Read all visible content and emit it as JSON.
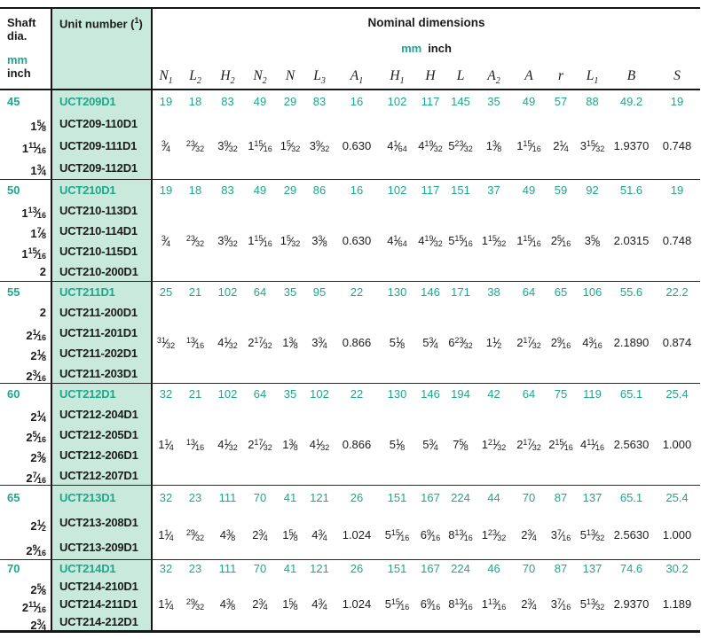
{
  "colors": {
    "accent": "#1fa78c",
    "unit_col_bg": "#c8e9dc",
    "border": "#161616"
  },
  "header": {
    "shaft_line1": "Shaft",
    "shaft_line2": "dia.",
    "shaft_mm_label": "mm",
    "shaft_inch_label": "inch",
    "unit_number_label": "Unit number",
    "unit_footnote": "1",
    "nominal_dimensions_label": "Nominal dimensions",
    "units_mm": "mm",
    "units_inch": "inch",
    "columns": [
      {
        "l": "N",
        "s": "1"
      },
      {
        "l": "L",
        "s": "2"
      },
      {
        "l": "H",
        "s": "2"
      },
      {
        "l": "N",
        "s": "2"
      },
      {
        "l": "N",
        "s": ""
      },
      {
        "l": "L",
        "s": "3"
      },
      {
        "l": "A",
        "s": "1"
      },
      {
        "l": "H",
        "s": "1"
      },
      {
        "l": "H",
        "s": ""
      },
      {
        "l": "L",
        "s": ""
      },
      {
        "l": "A",
        "s": "2"
      },
      {
        "l": "A",
        "s": ""
      },
      {
        "l": "r",
        "s": ""
      },
      {
        "l": "L",
        "s": "1"
      },
      {
        "l": "B",
        "s": ""
      },
      {
        "l": "S",
        "s": ""
      }
    ]
  },
  "blocks": [
    {
      "shaft_mm": "45",
      "shaft_inch": [
        "1 5/8",
        "1 11/16",
        "1 3/4"
      ],
      "units": [
        "UCT209D1",
        "UCT209-110D1",
        "UCT209-111D1",
        "UCT209-112D1"
      ],
      "mm": [
        "19",
        "18",
        "83",
        "49",
        "29",
        "83",
        "16",
        "102",
        "117",
        "145",
        "35",
        "49",
        "57",
        "88",
        "49.2",
        "19"
      ],
      "inch": [
        "3/4",
        "23/32",
        "3 9/32",
        "1 15/16",
        "1 5/32",
        "3 9/32",
        "0.630",
        "4 1/64",
        "4 19/32",
        "5 23/32",
        "1 3/8",
        "1 15/16",
        "2 1/4",
        "3 15/32",
        "1.9370",
        "0.748"
      ]
    },
    {
      "shaft_mm": "50",
      "shaft_inch": [
        "1 13/16",
        "1 7/8",
        "1 15/16",
        "2"
      ],
      "units": [
        "UCT210D1",
        "UCT210-113D1",
        "UCT210-114D1",
        "UCT210-115D1",
        "UCT210-200D1"
      ],
      "mm": [
        "19",
        "18",
        "83",
        "49",
        "29",
        "86",
        "16",
        "102",
        "117",
        "151",
        "37",
        "49",
        "59",
        "92",
        "51.6",
        "19"
      ],
      "inch": [
        "3/4",
        "23/32",
        "3 9/32",
        "1 15/16",
        "1 5/32",
        "3 3/8",
        "0.630",
        "4 1/64",
        "4 19/32",
        "5 15/16",
        "1 15/32",
        "1 15/16",
        "2 5/16",
        "3 5/8",
        "2.0315",
        "0.748"
      ]
    },
    {
      "shaft_mm": "55",
      "shaft_inch": [
        "2",
        "2 1/16",
        "2 1/8",
        "2 3/16"
      ],
      "units": [
        "UCT211D1",
        "UCT211-200D1",
        "UCT211-201D1",
        "UCT211-202D1",
        "UCT211-203D1"
      ],
      "mm": [
        "25",
        "21",
        "102",
        "64",
        "35",
        "95",
        "22",
        "130",
        "146",
        "171",
        "38",
        "64",
        "65",
        "106",
        "55.6",
        "22.2"
      ],
      "inch": [
        "31/32",
        "13/16",
        "4 1/32",
        "2 17/32",
        "1 3/8",
        "3 3/4",
        "0.866",
        "5 1/8",
        "5 3/4",
        "6 23/32",
        "1 1/2",
        "2 17/32",
        "2 9/16",
        "4 3/16",
        "2.1890",
        "0.874"
      ]
    },
    {
      "shaft_mm": "60",
      "shaft_inch": [
        "2 1/4",
        "2 5/16",
        "2 3/8",
        "2 7/16"
      ],
      "units": [
        "UCT212D1",
        "UCT212-204D1",
        "UCT212-205D1",
        "UCT212-206D1",
        "UCT212-207D1"
      ],
      "mm": [
        "32",
        "21",
        "102",
        "64",
        "35",
        "102",
        "22",
        "130",
        "146",
        "194",
        "42",
        "64",
        "75",
        "119",
        "65.1",
        "25.4"
      ],
      "inch": [
        "1 1/4",
        "13/16",
        "4 1/32",
        "2 17/32",
        "1 3/8",
        "4 1/32",
        "0.866",
        "5 1/8",
        "5 3/4",
        "7 5/8",
        "1 21/32",
        "2 17/32",
        "2 15/16",
        "4 11/16",
        "2.5630",
        "1.000"
      ]
    },
    {
      "shaft_mm": "65",
      "shaft_inch": [
        "2 1/2",
        "2 9/16"
      ],
      "units": [
        "UCT213D1",
        "UCT213-208D1",
        "UCT213-209D1"
      ],
      "mm": [
        "32",
        "23",
        "111",
        "70",
        "41",
        "121",
        "26",
        "151",
        "167",
        "224",
        "44",
        "70",
        "87",
        "137",
        "65.1",
        "25.4"
      ],
      "inch": [
        "1 1/4",
        "29/32",
        "4 3/8",
        "2 3/4",
        "1 5/8",
        "4 3/4",
        "1.024",
        "5 15/16",
        "6 9/16",
        "8 13/16",
        "1 23/32",
        "2 3/4",
        "3 7/16",
        "5 13/32",
        "2.5630",
        "1.000"
      ]
    },
    {
      "shaft_mm": "70",
      "shaft_inch": [
        "2 5/8",
        "2 11/16",
        "2 3/4"
      ],
      "units": [
        "UCT214D1",
        "UCT214-210D1",
        "UCT214-211D1",
        "UCT214-212D1"
      ],
      "mm": [
        "32",
        "23",
        "111",
        "70",
        "41",
        "121",
        "26",
        "151",
        "167",
        "224",
        "46",
        "70",
        "87",
        "137",
        "74.6",
        "30.2"
      ],
      "inch": [
        "1 1/4",
        "29/32",
        "4 3/8",
        "2 3/4",
        "1 5/8",
        "4 3/4",
        "1.024",
        "5 15/16",
        "6 9/16",
        "8 13/16",
        "1 13/16",
        "2 3/4",
        "3 7/16",
        "5 13/32",
        "2.9370",
        "1.189"
      ]
    }
  ]
}
